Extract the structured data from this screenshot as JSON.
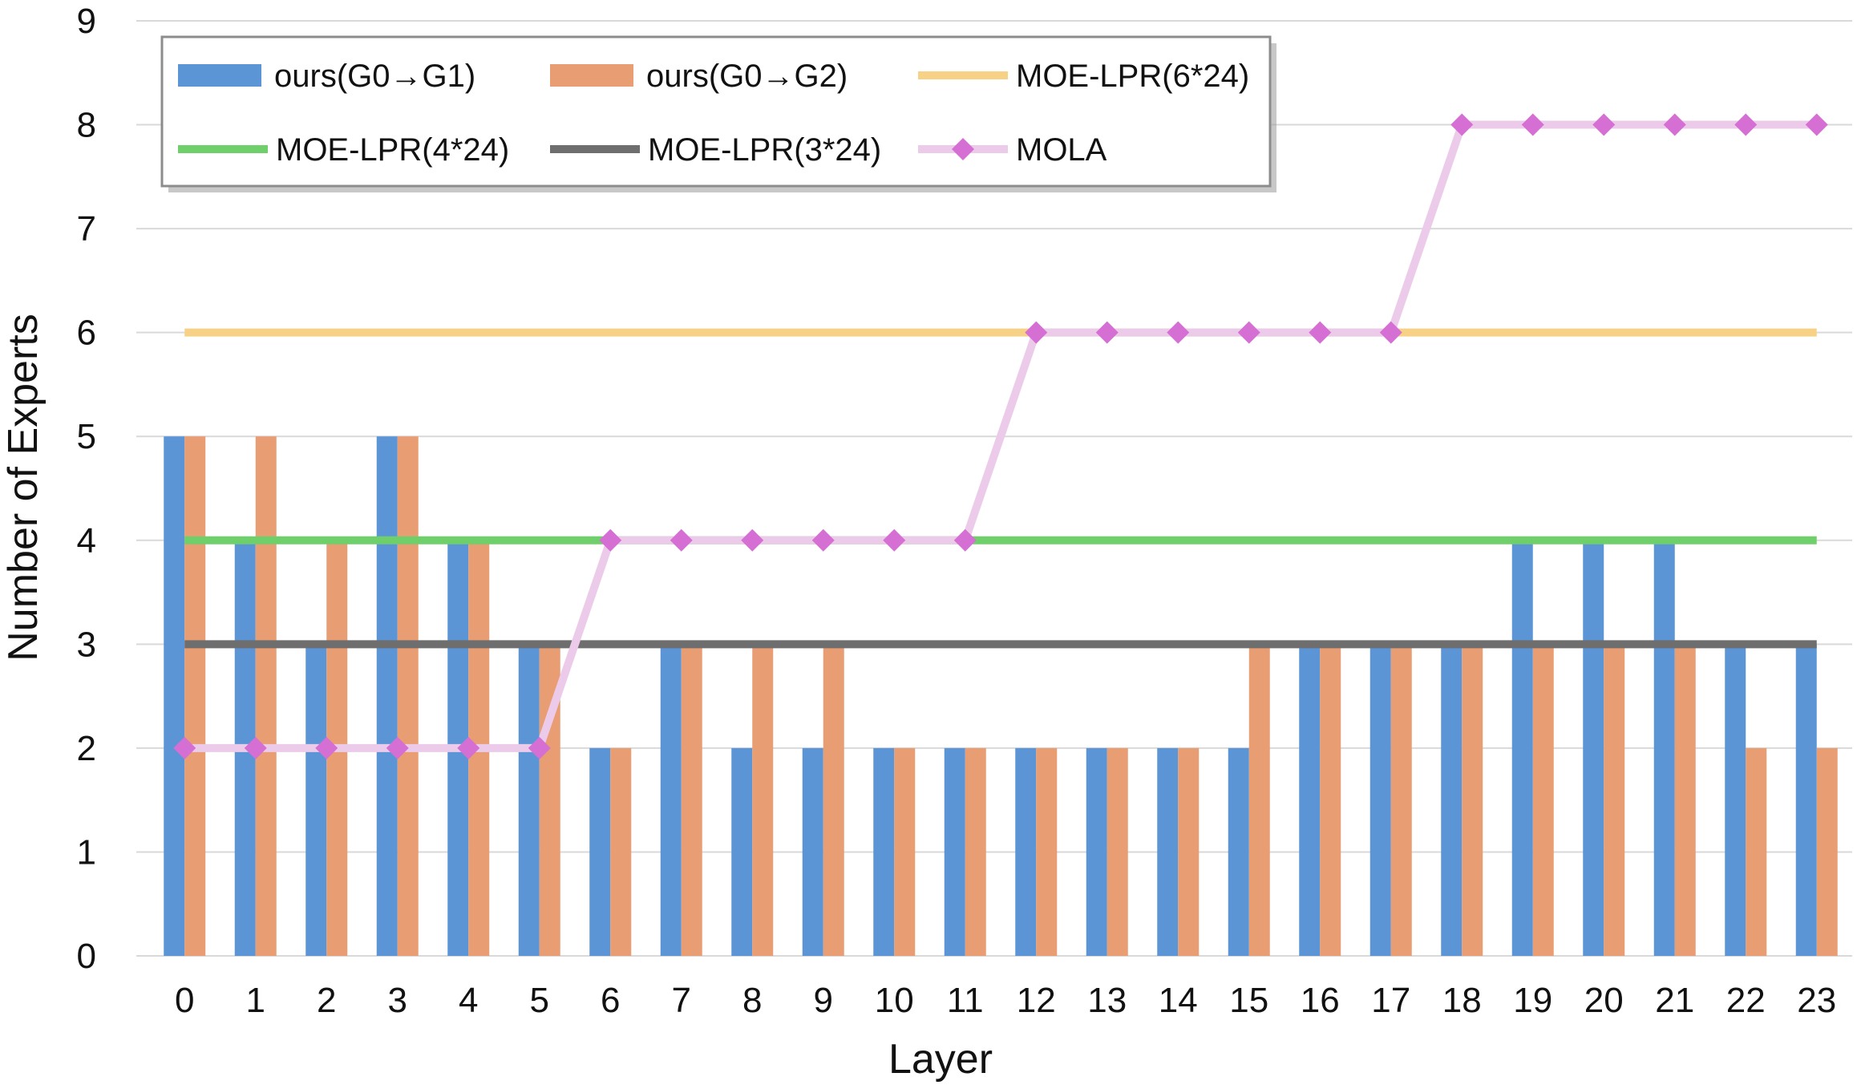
{
  "chart_data": {
    "type": "bar",
    "title": "",
    "xlabel": "Layer",
    "ylabel": "Number of Experts",
    "ylim": [
      0,
      9
    ],
    "yticks": [
      "0",
      "1",
      "2",
      "3",
      "4",
      "5",
      "6",
      "7",
      "8",
      "9"
    ],
    "categories": [
      "0",
      "1",
      "2",
      "3",
      "4",
      "5",
      "6",
      "7",
      "8",
      "9",
      "10",
      "11",
      "12",
      "13",
      "14",
      "15",
      "16",
      "17",
      "18",
      "19",
      "20",
      "21",
      "22",
      "23"
    ],
    "grid": true,
    "legend_position": "top-left",
    "series": [
      {
        "name": "ours(G0→G1)",
        "kind": "bar",
        "color": "#5b95d6",
        "values": [
          5,
          4,
          3,
          5,
          4,
          3,
          2,
          3,
          2,
          2,
          2,
          2,
          2,
          2,
          2,
          2,
          3,
          3,
          3,
          4,
          4,
          4,
          3,
          3
        ]
      },
      {
        "name": "ours(G0→G2)",
        "kind": "bar",
        "color": "#e89d73",
        "values": [
          5,
          5,
          4,
          5,
          4,
          3,
          2,
          3,
          3,
          3,
          2,
          2,
          2,
          2,
          2,
          3,
          3,
          3,
          3,
          3,
          3,
          3,
          2,
          2
        ]
      },
      {
        "name": "MOE-LPR(6*24)",
        "kind": "line",
        "color": "#f7d286",
        "values": [
          6,
          6,
          6,
          6,
          6,
          6,
          6,
          6,
          6,
          6,
          6,
          6,
          6,
          6,
          6,
          6,
          6,
          6,
          6,
          6,
          6,
          6,
          6,
          6
        ]
      },
      {
        "name": "MOE-LPR(4*24)",
        "kind": "line",
        "color": "#6fcf6a",
        "values": [
          4,
          4,
          4,
          4,
          4,
          4,
          4,
          4,
          4,
          4,
          4,
          4,
          4,
          4,
          4,
          4,
          4,
          4,
          4,
          4,
          4,
          4,
          4,
          4
        ]
      },
      {
        "name": "MOE-LPR(3*24)",
        "kind": "line",
        "color": "#6e6e6e",
        "values": [
          3,
          3,
          3,
          3,
          3,
          3,
          3,
          3,
          3,
          3,
          3,
          3,
          3,
          3,
          3,
          3,
          3,
          3,
          3,
          3,
          3,
          3,
          3,
          3
        ]
      },
      {
        "name": "MOLA",
        "kind": "line-marker",
        "color": "#eccbea",
        "marker_color": "#d56fd3",
        "values": [
          2,
          2,
          2,
          2,
          2,
          2,
          4,
          4,
          4,
          4,
          4,
          4,
          6,
          6,
          6,
          6,
          6,
          6,
          8,
          8,
          8,
          8,
          8,
          8
        ]
      }
    ]
  }
}
